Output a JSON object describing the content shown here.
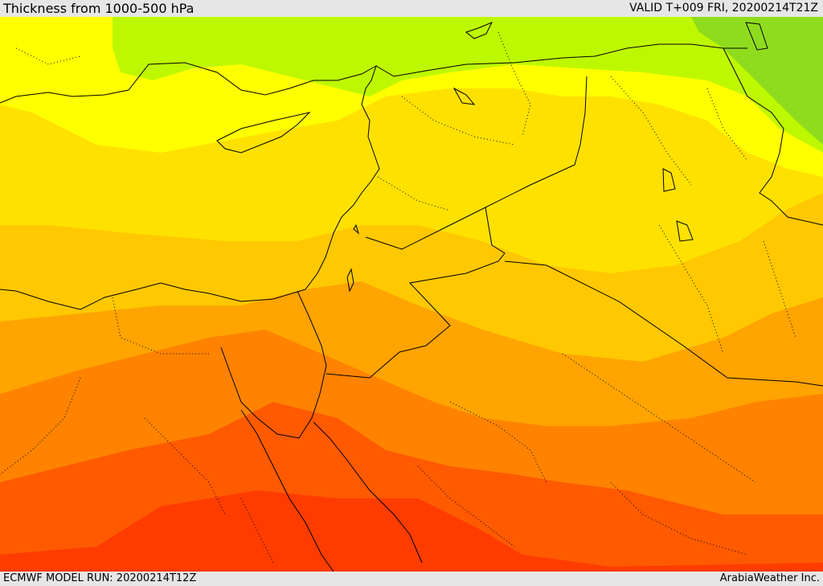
{
  "header": {
    "title": "Thickness from 1000-500 hPa",
    "valid": "VALID T+009 FRI, 20200214T21Z"
  },
  "footer": {
    "model_run": "ECMWF MODEL RUN: 20200214T12Z",
    "brand": "ArabiaWeather Inc."
  },
  "colors": {
    "band_1": "#8fdc1e",
    "band_2": "#bef800",
    "band_3": "#ffff00",
    "band_4": "#ffe100",
    "band_5": "#ffc800",
    "band_6": "#ffa400",
    "band_7": "#ff8300",
    "band_8": "#ff5a00",
    "band_9": "#ff3c00"
  }
}
